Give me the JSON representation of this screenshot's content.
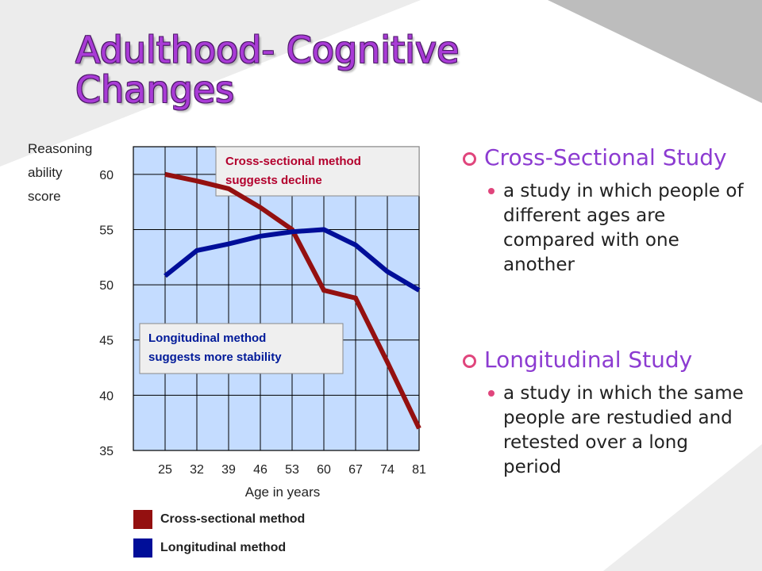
{
  "slide": {
    "title": "Adulthood- Cognitive Changes",
    "bg_colors": {
      "light": "#ececec",
      "dark": "#bdbdbd"
    }
  },
  "chart_data": {
    "type": "line",
    "x": [
      25,
      32,
      39,
      46,
      53,
      60,
      67,
      74,
      81
    ],
    "xlabel": "Age in years",
    "ylabel": [
      "Reasoning",
      "ability",
      "score"
    ],
    "yticks": [
      35,
      40,
      45,
      50,
      55,
      60
    ],
    "ylim": [
      35,
      62.5
    ],
    "grid": true,
    "plot_bg": "#c4dcff",
    "series": [
      {
        "name": "Cross-sectional method",
        "color": "#941010",
        "values": [
          60,
          59.4,
          58.7,
          57,
          55,
          49.5,
          48.8,
          43,
          37
        ]
      },
      {
        "name": "Longitudinal method",
        "color": "#000e99",
        "values": [
          50.8,
          53.1,
          53.7,
          54.4,
          54.8,
          55,
          53.6,
          51.2,
          49.5
        ]
      }
    ],
    "annotations": [
      {
        "lines": [
          "Cross-sectional method",
          "suggests decline"
        ],
        "color": "#b3002d"
      },
      {
        "lines": [
          "Longitudinal method",
          "suggests more stability"
        ],
        "color": "#001a99"
      }
    ],
    "legend": {
      "placement": "bottom"
    }
  },
  "bullets": [
    {
      "heading": "Cross-Sectional Study",
      "items": [
        "a study in which people of different ages are compared with one another"
      ]
    },
    {
      "heading": "Longitudinal Study",
      "items": [
        "a study in which the same people are restudied and retested over a long period"
      ]
    }
  ]
}
